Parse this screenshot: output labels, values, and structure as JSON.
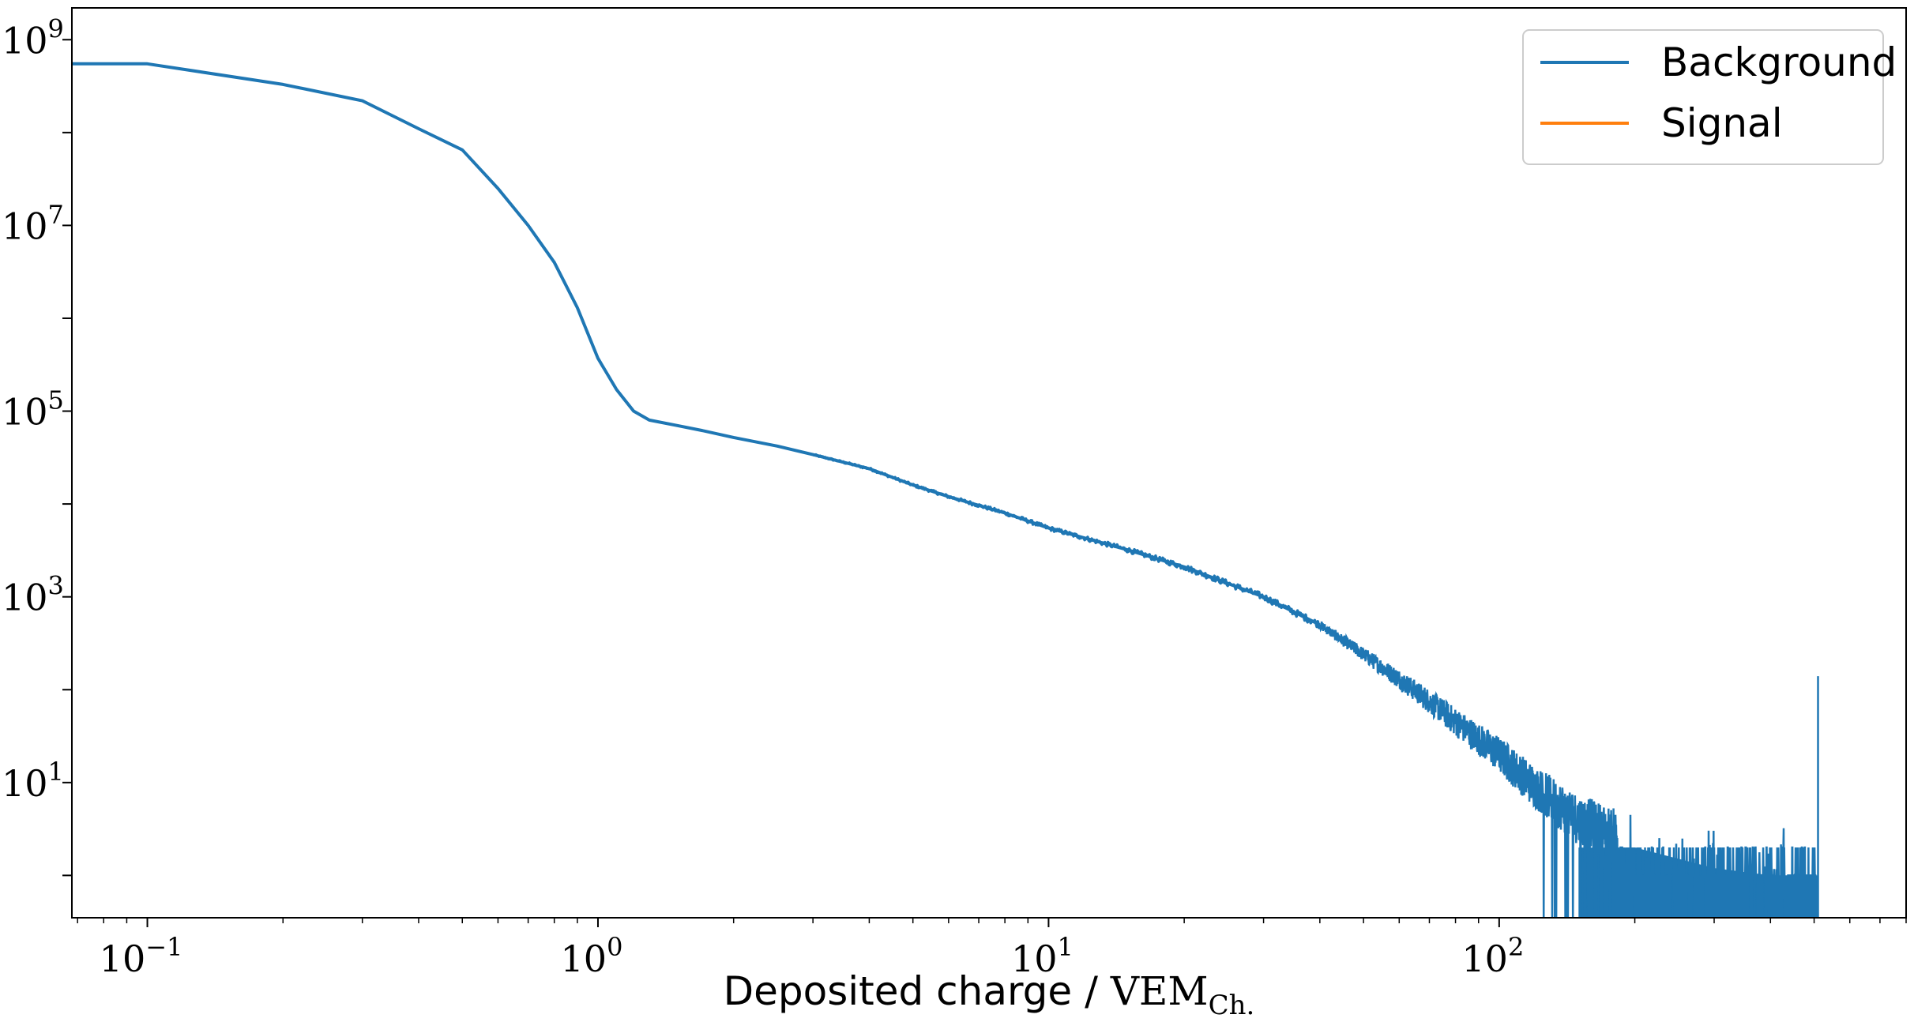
{
  "chart_data": {
    "type": "line",
    "xscale": "log",
    "yscale": "log",
    "xlim": [
      0.068,
      800
    ],
    "ylim": [
      0.35,
      2200000000
    ],
    "x_ticks": [
      {
        "base": "10",
        "exp": "−1",
        "value": 0.1
      },
      {
        "base": "10",
        "exp": "0",
        "value": 1
      },
      {
        "base": "10",
        "exp": "1",
        "value": 10
      },
      {
        "base": "10",
        "exp": "2",
        "value": 100
      }
    ],
    "y_ticks": [
      {
        "base": "10",
        "exp": "1",
        "value": 10
      },
      {
        "base": "10",
        "exp": "3",
        "value": 1000
      },
      {
        "base": "10",
        "exp": "5",
        "value": 100000
      },
      {
        "base": "10",
        "exp": "7",
        "value": 10000000
      },
      {
        "base": "10",
        "exp": "9",
        "value": 1000000000
      }
    ],
    "xlabel": {
      "text": "Deposited charge / ",
      "unit": "VEM",
      "unit_sub": "Ch."
    },
    "ylabel": "",
    "legend": {
      "placement": "top-right"
    },
    "grid": false,
    "series": [
      {
        "name": "Background",
        "color": "#1f77b4",
        "points": [
          [
            0.068,
            550000000
          ],
          [
            0.1,
            550000000
          ],
          [
            0.2,
            330000000
          ],
          [
            0.3,
            220000000
          ],
          [
            0.4,
            110000000
          ],
          [
            0.5,
            65000000
          ],
          [
            0.6,
            25000000
          ],
          [
            0.7,
            10000000
          ],
          [
            0.8,
            4000000
          ],
          [
            0.9,
            1300000
          ],
          [
            1.0,
            370000
          ],
          [
            1.1,
            170000
          ],
          [
            1.2,
            100000
          ],
          [
            1.3,
            80000
          ],
          [
            1.5,
            70000
          ],
          [
            1.7,
            62000
          ],
          [
            2.0,
            52000
          ],
          [
            2.5,
            42000
          ],
          [
            3.0,
            34000
          ],
          [
            4.0,
            24000
          ],
          [
            5.0,
            16000
          ],
          [
            6.0,
            12000
          ],
          [
            8.0,
            8000
          ],
          [
            10.0,
            5500
          ],
          [
            15.0,
            3200
          ],
          [
            20.0,
            2100
          ],
          [
            30.0,
            1000
          ],
          [
            40.0,
            500
          ],
          [
            50.0,
            240
          ],
          [
            60.0,
            130
          ],
          [
            70.0,
            75
          ],
          [
            80.0,
            45
          ],
          [
            100.0,
            20
          ],
          [
            120.0,
            9
          ],
          [
            150.0,
            4
          ],
          [
            200.0,
            2
          ],
          [
            300.0,
            1.2
          ],
          [
            400.0,
            1.0
          ],
          [
            500.0,
            1.0
          ]
        ],
        "noise_start_x": 40,
        "floor_value": 0.35,
        "spike": {
          "x": 510,
          "y": 140
        }
      },
      {
        "name": "Signal",
        "color": "#ff7f0e",
        "points": []
      }
    ]
  }
}
